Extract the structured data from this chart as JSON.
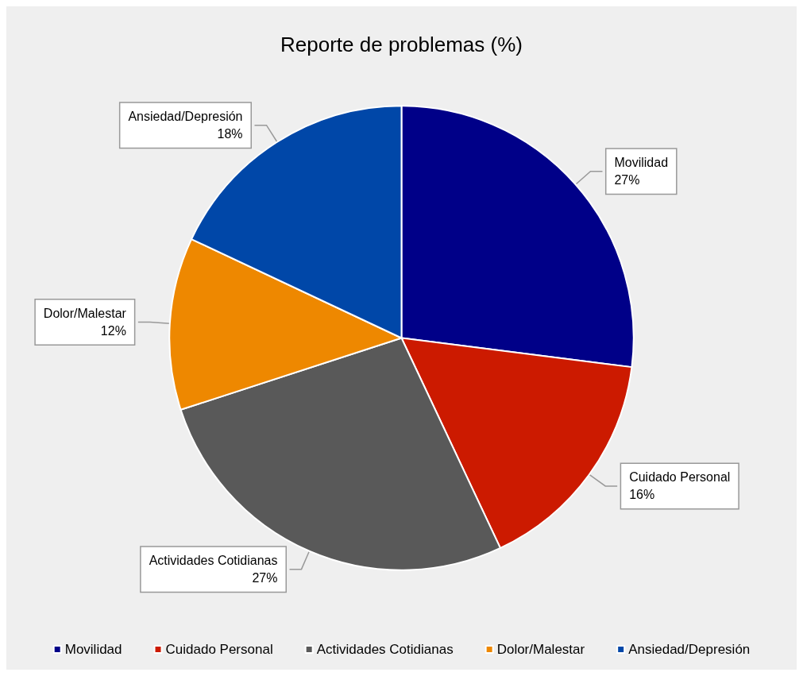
{
  "chart_data": {
    "type": "pie",
    "title": "Reporte de problemas (%)",
    "categories": [
      "Movilidad",
      "Cuidado Personal",
      "Actividades Cotidianas",
      "Dolor/Malestar",
      "Ansiedad/Depresión"
    ],
    "values": [
      27,
      16,
      27,
      12,
      18
    ],
    "colors": [
      "#000088",
      "#cc1a00",
      "#595959",
      "#ee8800",
      "#0047a8"
    ],
    "value_labels": [
      "27%",
      "16%",
      "27%",
      "12%",
      "18%"
    ],
    "legend": "bottom"
  }
}
